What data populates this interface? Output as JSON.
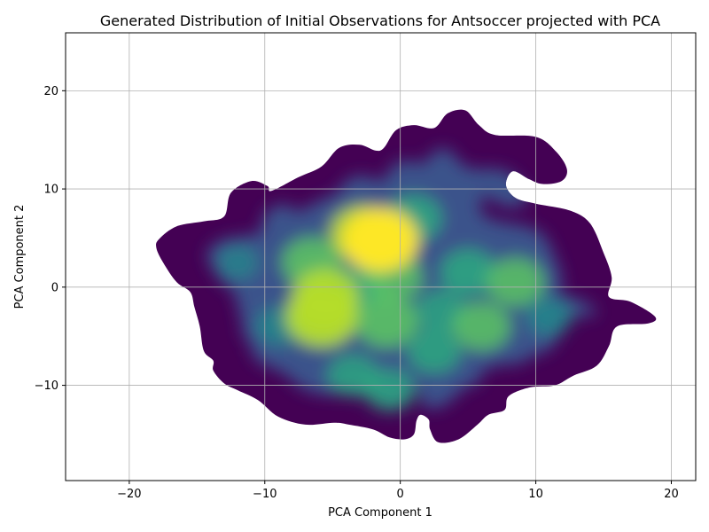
{
  "chart_data": {
    "type": "heatmap",
    "title": "Generated Distribution of Initial Observations for Antsoccer projected with PCA",
    "xlabel": "PCA Component 1",
    "ylabel": "PCA Component 2",
    "xlim": [
      -24.7,
      21.8
    ],
    "ylim": [
      -19.7,
      25.9
    ],
    "xticks": [
      -20,
      -10,
      0,
      10,
      20
    ],
    "yticks": [
      -10,
      0,
      10,
      20
    ],
    "xtick_labels": [
      "−20",
      "−10",
      "0",
      "10",
      "20"
    ],
    "ytick_labels": [
      "−10",
      "0",
      "10",
      "20"
    ],
    "grid": true,
    "colormap": "viridis",
    "colors": {
      "low": "#440154",
      "mid_low": "#3b528b",
      "mid": "#21918c",
      "mid_high": "#5ec962",
      "high": "#fde725",
      "grid": "#b0b0b0"
    },
    "density_outline": [
      [
        -17.8,
        4.9
      ],
      [
        -16.5,
        6.2
      ],
      [
        -14.5,
        6.7
      ],
      [
        -13.0,
        7.2
      ],
      [
        -12.5,
        9.6
      ],
      [
        -11.0,
        10.8
      ],
      [
        -9.8,
        10.3
      ],
      [
        -9.5,
        9.8
      ],
      [
        -7.5,
        11.2
      ],
      [
        -5.8,
        12.3
      ],
      [
        -4.5,
        14.2
      ],
      [
        -3.0,
        14.5
      ],
      [
        -1.8,
        13.9
      ],
      [
        -1.2,
        14.2
      ],
      [
        -0.3,
        16.0
      ],
      [
        1.0,
        16.5
      ],
      [
        2.5,
        16.2
      ],
      [
        3.5,
        17.7
      ],
      [
        4.8,
        18.0
      ],
      [
        5.8,
        16.5
      ],
      [
        7.0,
        15.5
      ],
      [
        10.0,
        15.3
      ],
      [
        11.5,
        13.8
      ],
      [
        12.3,
        12.0
      ],
      [
        11.9,
        10.8
      ],
      [
        10.5,
        10.5
      ],
      [
        9.5,
        11.0
      ],
      [
        8.3,
        11.8
      ],
      [
        7.8,
        10.4
      ],
      [
        8.5,
        9.1
      ],
      [
        10.0,
        8.5
      ],
      [
        12.5,
        7.8
      ],
      [
        14.0,
        6.5
      ],
      [
        15.0,
        3.5
      ],
      [
        15.6,
        1.0
      ],
      [
        15.4,
        -1.0
      ],
      [
        17.0,
        -1.5
      ],
      [
        18.8,
        -3.0
      ],
      [
        18.3,
        -3.7
      ],
      [
        16.0,
        -4.0
      ],
      [
        15.4,
        -6.0
      ],
      [
        14.5,
        -8.0
      ],
      [
        12.8,
        -9.0
      ],
      [
        11.4,
        -10.0
      ],
      [
        9.6,
        -10.2
      ],
      [
        8.0,
        -11.1
      ],
      [
        7.7,
        -12.5
      ],
      [
        6.5,
        -13.0
      ],
      [
        5.7,
        -14.0
      ],
      [
        4.3,
        -15.5
      ],
      [
        2.8,
        -15.8
      ],
      [
        2.2,
        -14.5
      ],
      [
        2.1,
        -13.5
      ],
      [
        1.5,
        -13.0
      ],
      [
        1.2,
        -13.6
      ],
      [
        1.0,
        -15.0
      ],
      [
        0.3,
        -15.5
      ],
      [
        -0.8,
        -15.3
      ],
      [
        -2.0,
        -14.5
      ],
      [
        -3.8,
        -14.0
      ],
      [
        -4.9,
        -13.8
      ],
      [
        -7.0,
        -14.0
      ],
      [
        -9.0,
        -13.2
      ],
      [
        -10.5,
        -11.5
      ],
      [
        -12.0,
        -10.5
      ],
      [
        -13.0,
        -9.8
      ],
      [
        -13.8,
        -8.5
      ],
      [
        -13.8,
        -7.5
      ],
      [
        -14.5,
        -6.5
      ],
      [
        -14.8,
        -4.0
      ],
      [
        -15.2,
        -2.0
      ],
      [
        -15.5,
        -0.5
      ],
      [
        -16.5,
        0.5
      ],
      [
        -17.5,
        2.5
      ],
      [
        -18.0,
        4.0
      ]
    ],
    "density_peaks": [
      {
        "x": -1.5,
        "y": 4.8,
        "level": 1.0
      },
      {
        "x": -2.8,
        "y": 5.5,
        "level": 0.75
      },
      {
        "x": -5.8,
        "y": -3.0,
        "level": 0.9
      },
      {
        "x": -5.5,
        "y": -1.0,
        "level": 0.8
      },
      {
        "x": -6.5,
        "y": 2.5,
        "level": 0.65
      },
      {
        "x": -1.0,
        "y": -3.5,
        "level": 0.7
      },
      {
        "x": -0.5,
        "y": 1.0,
        "level": 0.6
      },
      {
        "x": 1.0,
        "y": 7.0,
        "level": 0.55
      },
      {
        "x": 6.0,
        "y": -4.0,
        "level": 0.6
      },
      {
        "x": 5.0,
        "y": 1.5,
        "level": 0.55
      },
      {
        "x": 8.5,
        "y": 0.5,
        "level": 0.6
      },
      {
        "x": 2.5,
        "y": -6.5,
        "level": 0.5
      },
      {
        "x": -3.5,
        "y": -9.0,
        "level": 0.45
      },
      {
        "x": -0.8,
        "y": -10.5,
        "level": 0.45
      },
      {
        "x": -3.0,
        "y": 0.0,
        "level": 0.5
      },
      {
        "x": 3.0,
        "y": -2.5,
        "level": 0.45
      },
      {
        "x": -9.0,
        "y": -4.0,
        "level": 0.35
      },
      {
        "x": -12.0,
        "y": 2.5,
        "level": 0.25
      },
      {
        "x": 11.0,
        "y": -3.0,
        "level": 0.35
      }
    ]
  }
}
